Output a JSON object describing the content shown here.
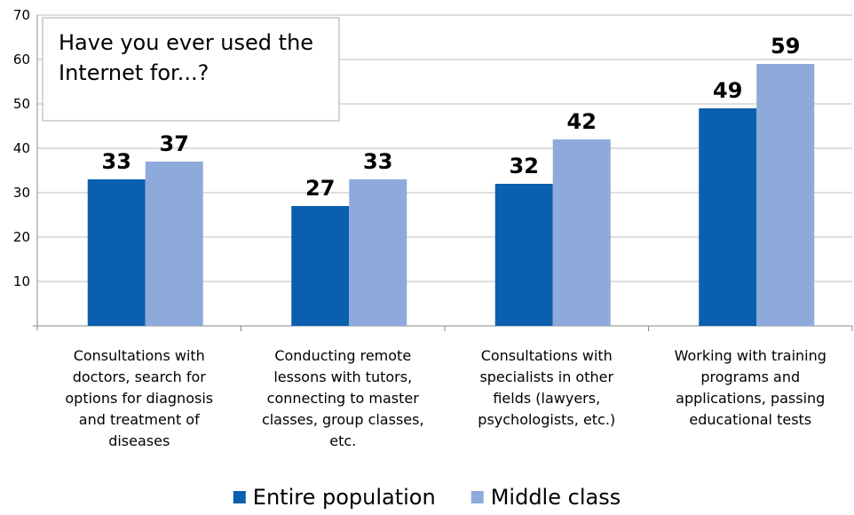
{
  "chart_data": {
    "type": "bar",
    "title": "Have you ever used the Internet for...?",
    "categories": [
      "Consultations with doctors, search for options for diagnosis and treatment of diseases",
      "Conducting remote lessons with tutors, connecting to master classes, group classes, etc.",
      "Consultations with specialists in other fields (lawyers, psychologists, etc.)",
      "Working with training programs and applications, passing educational tests"
    ],
    "series": [
      {
        "name": "Entire population",
        "color": "#0a5fae",
        "values": [
          33,
          27,
          32,
          49
        ]
      },
      {
        "name": "Middle class",
        "color": "#8eaadb",
        "values": [
          37,
          33,
          42,
          59
        ]
      }
    ],
    "ylim": [
      0,
      70
    ],
    "yticks": [
      10,
      20,
      30,
      40,
      50,
      60,
      70
    ],
    "grid": true,
    "legend": "bottom"
  }
}
